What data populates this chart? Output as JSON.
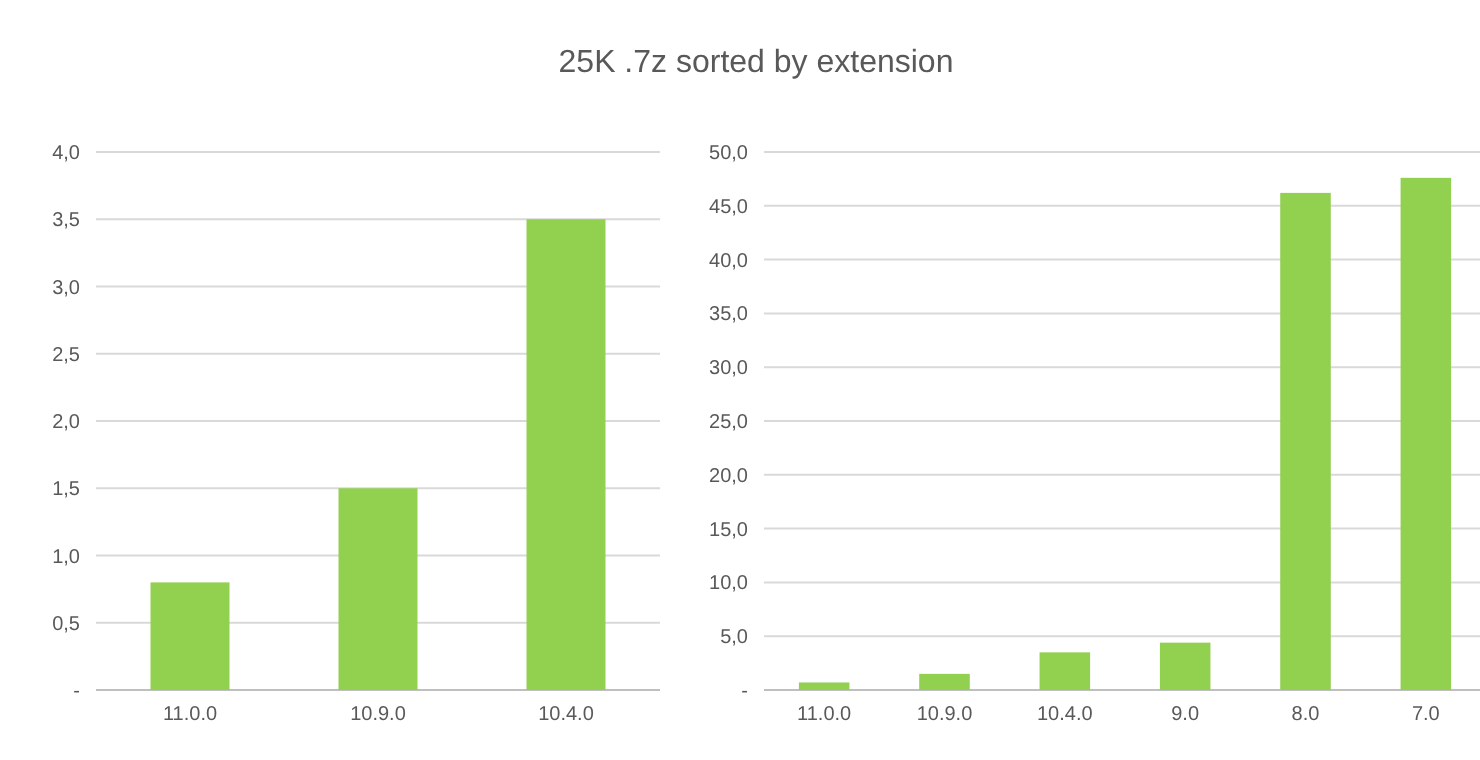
{
  "chart_data": [
    {
      "type": "bar",
      "title": "25K .7z sorted by extension",
      "categories": [
        "11.0.0",
        "10.9.0",
        "10.4.0"
      ],
      "values": [
        0.8,
        1.5,
        3.5
      ],
      "color": "#92d050",
      "ylim": [
        0,
        4
      ],
      "yticks": [
        {
          "value": 0,
          "label": "-"
        },
        {
          "value": 0.5,
          "label": "0,5"
        },
        {
          "value": 1,
          "label": "1,0"
        },
        {
          "value": 1.5,
          "label": "1,5"
        },
        {
          "value": 2,
          "label": "2,0"
        },
        {
          "value": 2.5,
          "label": "2,5"
        },
        {
          "value": 3,
          "label": "3,0"
        },
        {
          "value": 3.5,
          "label": "3,5"
        },
        {
          "value": 4,
          "label": "4,0"
        }
      ],
      "grid": "y"
    },
    {
      "type": "bar",
      "categories": [
        "11.0.0",
        "10.9.0",
        "10.4.0",
        "9.0",
        "8.0",
        "7.0"
      ],
      "values": [
        0.7,
        1.5,
        3.5,
        4.4,
        46.2,
        47.6
      ],
      "color": "#92d050",
      "ylim": [
        0,
        50
      ],
      "yticks": [
        {
          "value": 0,
          "label": "-"
        },
        {
          "value": 5,
          "label": "5,0"
        },
        {
          "value": 10,
          "label": "10,0"
        },
        {
          "value": 15,
          "label": "15,0"
        },
        {
          "value": 20,
          "label": "20,0"
        },
        {
          "value": 25,
          "label": "25,0"
        },
        {
          "value": 30,
          "label": "30,0"
        },
        {
          "value": 35,
          "label": "35,0"
        },
        {
          "value": 40,
          "label": "40,0"
        },
        {
          "value": 45,
          "label": "45,0"
        },
        {
          "value": 50,
          "label": "50,0"
        }
      ],
      "grid": "y"
    }
  ]
}
